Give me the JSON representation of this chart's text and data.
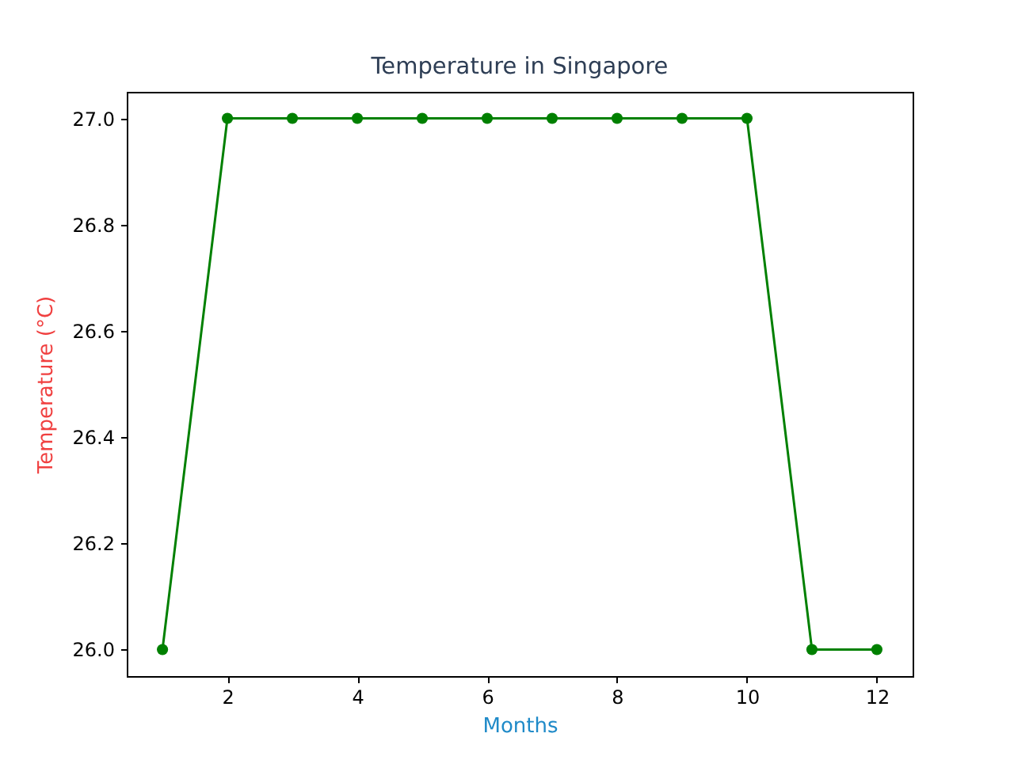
{
  "chart_data": {
    "type": "line",
    "title": "Temperature in Singapore",
    "xlabel": "Months",
    "ylabel": "Temperature (°C)",
    "x": [
      1,
      2,
      3,
      4,
      5,
      6,
      7,
      8,
      9,
      10,
      11,
      12
    ],
    "series": [
      {
        "color": "#008000",
        "values": [
          26,
          27,
          27,
          27,
          27,
          27,
          27,
          27,
          27,
          27,
          26,
          26
        ]
      }
    ],
    "xlim": [
      0.45,
      12.55
    ],
    "xticks": [
      2,
      4,
      6,
      8,
      10,
      12
    ],
    "ylim": [
      25.95,
      27.05
    ],
    "yticks": [
      {
        "value": 26,
        "label": "26.0"
      },
      {
        "value": 26.2,
        "label": "26.2"
      },
      {
        "value": 26.4,
        "label": "26.4"
      },
      {
        "value": 26.6,
        "label": "26.6"
      },
      {
        "value": 26.8,
        "label": "26.8"
      },
      {
        "value": 27,
        "label": "27.0"
      }
    ],
    "grid": false,
    "legend": false,
    "marker": "circle",
    "line_style": "solid"
  }
}
